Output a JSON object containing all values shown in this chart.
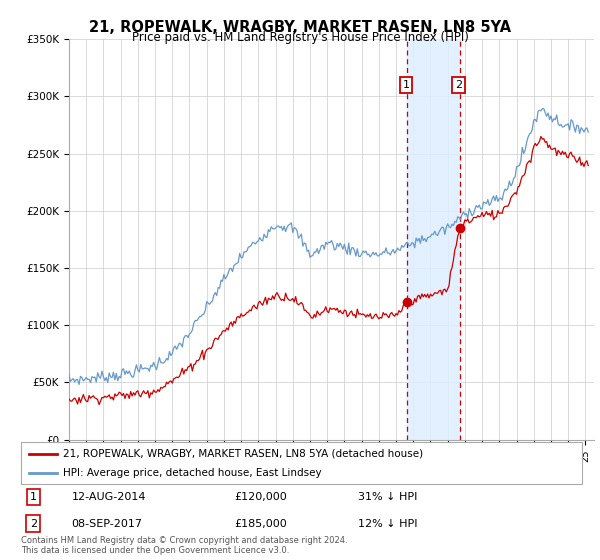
{
  "title": "21, ROPEWALK, WRAGBY, MARKET RASEN, LN8 5YA",
  "subtitle": "Price paid vs. HM Land Registry's House Price Index (HPI)",
  "ylim": [
    0,
    350000
  ],
  "xlim_start": 1995.0,
  "xlim_end": 2025.5,
  "yticks": [
    0,
    50000,
    100000,
    150000,
    200000,
    250000,
    300000,
    350000
  ],
  "ytick_labels": [
    "£0",
    "£50K",
    "£100K",
    "£150K",
    "£200K",
    "£250K",
    "£300K",
    "£350K"
  ],
  "sale1_date": 2014.62,
  "sale1_price": 120000,
  "sale2_date": 2017.69,
  "sale2_price": 185000,
  "line_red_color": "#cc0000",
  "line_blue_color": "#6699cc",
  "shade_color": "#ddeeff",
  "legend_line1": "21, ROPEWALK, WRAGBY, MARKET RASEN, LN8 5YA (detached house)",
  "legend_line2": "HPI: Average price, detached house, East Lindsey",
  "table_row1": [
    "1",
    "12-AUG-2014",
    "£120,000",
    "31% ↓ HPI"
  ],
  "table_row2": [
    "2",
    "08-SEP-2017",
    "£185,000",
    "12% ↓ HPI"
  ],
  "footer1": "Contains HM Land Registry data © Crown copyright and database right 2024.",
  "footer2": "This data is licensed under the Open Government Licence v3.0.",
  "background_color": "#ffffff",
  "grid_color": "#cccccc"
}
